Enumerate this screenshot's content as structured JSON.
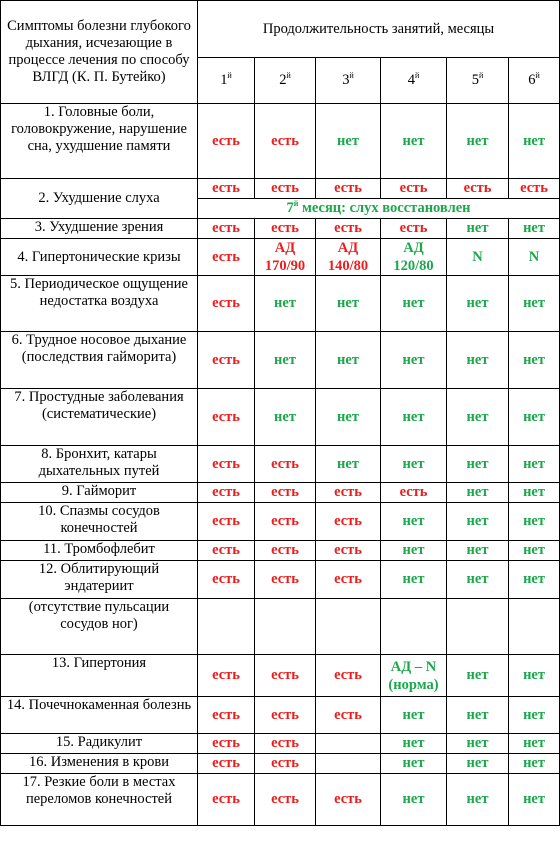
{
  "header": {
    "symptoms_title": "Симптомы болезни глубокого дыхания, исчезающие в процессе лечения по способу ВЛГД (К. П. Бутейко)",
    "duration_title": "Продолжительность занятий, месяцы",
    "months": [
      {
        "num": "1",
        "suffix": "й"
      },
      {
        "num": "2",
        "suffix": "й"
      },
      {
        "num": "3",
        "suffix": "й"
      },
      {
        "num": "4",
        "suffix": "й"
      },
      {
        "num": "5",
        "suffix": "й"
      },
      {
        "num": "6",
        "suffix": "й"
      }
    ]
  },
  "rows": [
    {
      "symptom": "1. Головные боли, головокружение, нарушение сна, ухудшение памяти",
      "cells": [
        {
          "t": "есть",
          "c": "red"
        },
        {
          "t": "есть",
          "c": "red"
        },
        {
          "t": "нет",
          "c": "green"
        },
        {
          "t": "нет",
          "c": "green"
        },
        {
          "t": "нет",
          "c": "green"
        },
        {
          "t": "нет",
          "c": "green"
        }
      ]
    },
    {
      "symptom": "2. Ухудшение слуха",
      "cells": [
        {
          "t": "есть",
          "c": "red"
        },
        {
          "t": "есть",
          "c": "red"
        },
        {
          "t": "есть",
          "c": "red"
        },
        {
          "t": "есть",
          "c": "red"
        },
        {
          "t": "есть",
          "c": "red"
        },
        {
          "t": "есть",
          "c": "red"
        }
      ],
      "note_sup_num": "7",
      "note_sup": "й",
      "note_text": " месяц: слух восстановлен"
    },
    {
      "symptom": "3. Ухудшение зрения",
      "cells": [
        {
          "t": "есть",
          "c": "red"
        },
        {
          "t": "есть",
          "c": "red"
        },
        {
          "t": "есть",
          "c": "red"
        },
        {
          "t": "есть",
          "c": "red"
        },
        {
          "t": "нет",
          "c": "green"
        },
        {
          "t": "нет",
          "c": "green"
        }
      ]
    },
    {
      "symptom": "4. Гипертонические кризы",
      "cells": [
        {
          "t": "есть",
          "c": "red"
        },
        {
          "t": "АД",
          "t2": "170/90",
          "c": "red"
        },
        {
          "t": "АД",
          "t2": "140/80",
          "c": "red"
        },
        {
          "t": "АД",
          "t2": "120/80",
          "c": "green"
        },
        {
          "t": "N",
          "c": "green"
        },
        {
          "t": "N",
          "c": "green"
        }
      ]
    },
    {
      "symptom": "5. Периодическое ощущение недостатка воздуха",
      "cells": [
        {
          "t": "есть",
          "c": "red"
        },
        {
          "t": "нет",
          "c": "green"
        },
        {
          "t": "нет",
          "c": "green"
        },
        {
          "t": "нет",
          "c": "green"
        },
        {
          "t": "нет",
          "c": "green"
        },
        {
          "t": "нет",
          "c": "green"
        }
      ]
    },
    {
      "symptom": "6. Трудное носовое дыхание (последствия гайморита)",
      "cells": [
        {
          "t": "есть",
          "c": "red"
        },
        {
          "t": "нет",
          "c": "green"
        },
        {
          "t": "нет",
          "c": "green"
        },
        {
          "t": "нет",
          "c": "green"
        },
        {
          "t": "нет",
          "c": "green"
        },
        {
          "t": "нет",
          "c": "green"
        }
      ]
    },
    {
      "symptom": "7. Простудные заболевания (систематические)",
      "cells": [
        {
          "t": "есть",
          "c": "red"
        },
        {
          "t": "нет",
          "c": "green"
        },
        {
          "t": "нет",
          "c": "green"
        },
        {
          "t": "нет",
          "c": "green"
        },
        {
          "t": "нет",
          "c": "green"
        },
        {
          "t": "нет",
          "c": "green"
        }
      ]
    },
    {
      "symptom": "8. Бронхит, катары дыхательных путей",
      "cells": [
        {
          "t": "есть",
          "c": "red"
        },
        {
          "t": "есть",
          "c": "red"
        },
        {
          "t": "нет",
          "c": "green"
        },
        {
          "t": "нет",
          "c": "green"
        },
        {
          "t": "нет",
          "c": "green"
        },
        {
          "t": "нет",
          "c": "green"
        }
      ]
    },
    {
      "symptom": "9. Гайморит",
      "cells": [
        {
          "t": "есть",
          "c": "red"
        },
        {
          "t": "есть",
          "c": "red"
        },
        {
          "t": "есть",
          "c": "red"
        },
        {
          "t": "есть",
          "c": "red"
        },
        {
          "t": "нет",
          "c": "green"
        },
        {
          "t": "нет",
          "c": "green"
        }
      ]
    },
    {
      "symptom": "10. Спазмы сосудов конечностей",
      "cells": [
        {
          "t": "есть",
          "c": "red"
        },
        {
          "t": "есть",
          "c": "red"
        },
        {
          "t": "есть",
          "c": "red"
        },
        {
          "t": "нет",
          "c": "green"
        },
        {
          "t": "нет",
          "c": "green"
        },
        {
          "t": "нет",
          "c": "green"
        }
      ]
    },
    {
      "symptom": "11. Тромбофлебит",
      "cells": [
        {
          "t": "есть",
          "c": "red"
        },
        {
          "t": "есть",
          "c": "red"
        },
        {
          "t": "есть",
          "c": "red"
        },
        {
          "t": "нет",
          "c": "green"
        },
        {
          "t": "нет",
          "c": "green"
        },
        {
          "t": "нет",
          "c": "green"
        }
      ]
    },
    {
      "symptom": "12. Облитирующий эндатериит",
      "cells": [
        {
          "t": "есть",
          "c": "red"
        },
        {
          "t": "есть",
          "c": "red"
        },
        {
          "t": "есть",
          "c": "red"
        },
        {
          "t": "нет",
          "c": "green"
        },
        {
          "t": "нет",
          "c": "green"
        },
        {
          "t": "нет",
          "c": "green"
        }
      ]
    },
    {
      "symptom": "(отсутствие пульсации сосудов ног)",
      "cells": [
        {
          "t": ""
        },
        {
          "t": ""
        },
        {
          "t": ""
        },
        {
          "t": ""
        },
        {
          "t": ""
        },
        {
          "t": ""
        }
      ]
    },
    {
      "symptom": "13. Гипертония",
      "cells": [
        {
          "t": "есть",
          "c": "red"
        },
        {
          "t": "есть",
          "c": "red"
        },
        {
          "t": "есть",
          "c": "red"
        },
        {
          "t": "АД – N",
          "t2": "(норма)",
          "c": "green"
        },
        {
          "t": "нет",
          "c": "green"
        },
        {
          "t": "нет",
          "c": "green"
        }
      ]
    },
    {
      "symptom": "14. Почечнокаменная болезнь",
      "cells": [
        {
          "t": "есть",
          "c": "red"
        },
        {
          "t": "есть",
          "c": "red"
        },
        {
          "t": "есть",
          "c": "red"
        },
        {
          "t": "нет",
          "c": "green"
        },
        {
          "t": "нет",
          "c": "green"
        },
        {
          "t": "нет",
          "c": "green"
        }
      ]
    },
    {
      "symptom": "15. Радикулит",
      "cells": [
        {
          "t": "есть",
          "c": "red"
        },
        {
          "t": "есть",
          "c": "red"
        },
        {
          "t": ""
        },
        {
          "t": "нет",
          "c": "green"
        },
        {
          "t": "нет",
          "c": "green"
        },
        {
          "t": "нет",
          "c": "green"
        }
      ]
    },
    {
      "symptom": "16. Изменения в крови",
      "cells": [
        {
          "t": "есть",
          "c": "red"
        },
        {
          "t": "есть",
          "c": "red"
        },
        {
          "t": ""
        },
        {
          "t": "нет",
          "c": "green"
        },
        {
          "t": "нет",
          "c": "green"
        },
        {
          "t": "нет",
          "c": "green"
        }
      ]
    },
    {
      "symptom": "17. Резкие боли в местах переломов конечностей",
      "cells": [
        {
          "t": "есть",
          "c": "red"
        },
        {
          "t": "есть",
          "c": "red"
        },
        {
          "t": "есть",
          "c": "red"
        },
        {
          "t": "нет",
          "c": "green"
        },
        {
          "t": "нет",
          "c": "green"
        },
        {
          "t": "нет",
          "c": "green"
        }
      ]
    }
  ]
}
